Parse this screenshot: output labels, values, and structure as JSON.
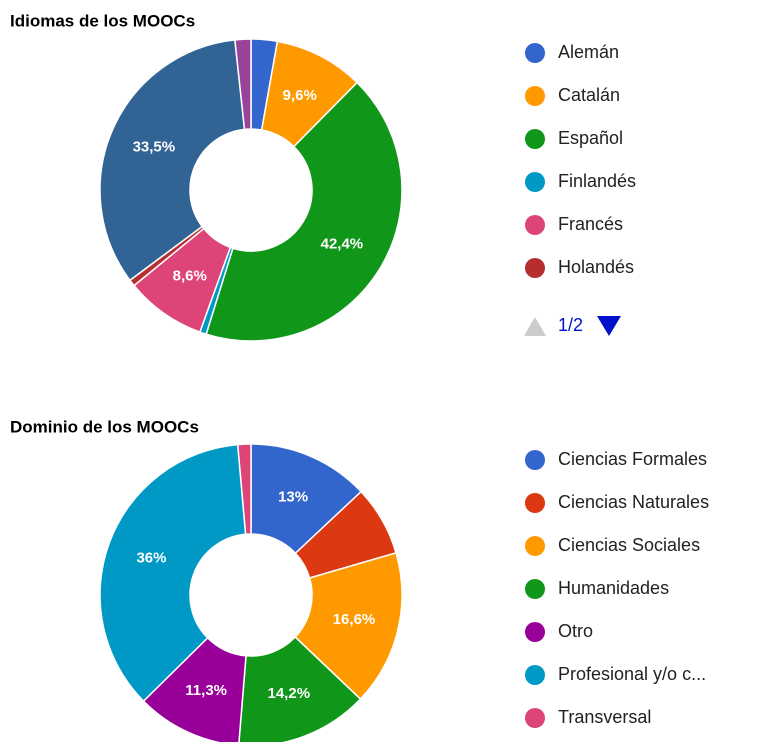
{
  "chart_data": [
    {
      "type": "donut",
      "title": "Idiomas de los MOOCs",
      "categories": [
        "Alemán",
        "Catalán",
        "Español",
        "Finlandés",
        "Francés",
        "Holandés",
        null,
        null
      ],
      "values": [
        2.8,
        9.6,
        42.4,
        0.7,
        8.6,
        0.7,
        33.5,
        1.7
      ],
      "value_labels": [
        null,
        "9,6%",
        "42,4%",
        null,
        "8,6%",
        null,
        "33,5%",
        null
      ],
      "colors": [
        "#3366cc",
        "#ff9900",
        "#109618",
        "#0099c6",
        "#dd4477",
        "#b82e2e",
        "#316395",
        "#994499"
      ],
      "legend_page": "1/2"
    },
    {
      "type": "donut",
      "title": "Dominio de los MOOCs",
      "categories": [
        "Ciencias Formales",
        "Ciencias Naturales",
        "Ciencias Sociales",
        "Humanidades",
        "Otro",
        "Profesional y/o c...",
        "Transversal"
      ],
      "values": [
        13,
        7.5,
        16.6,
        14.2,
        11.3,
        36,
        1.4
      ],
      "value_labels": [
        "13%",
        null,
        "16,6%",
        "14,2%",
        "11,3%",
        "36%",
        null
      ],
      "colors": [
        "#3366cc",
        "#dc3912",
        "#ff9900",
        "#109618",
        "#990099",
        "#0099c6",
        "#dd4477"
      ]
    }
  ]
}
